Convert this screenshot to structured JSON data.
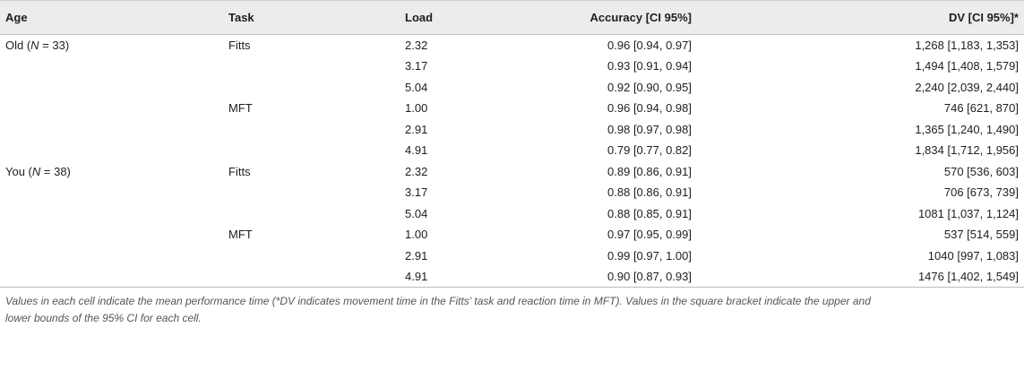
{
  "headers": {
    "age": "Age",
    "task": "Task",
    "load": "Load",
    "accuracy": "Accuracy [CI 95%]",
    "dv": "DV [CI 95%]*"
  },
  "rows": [
    {
      "age_prefix": "Old (",
      "age_n": "N",
      "age_suffix": " = 33)",
      "task": "Fitts",
      "load": "2.32",
      "accuracy": "0.96 [0.94, 0.97]",
      "dv": "1,268 [1,183, 1,353]"
    },
    {
      "age_prefix": "",
      "age_n": "",
      "age_suffix": "",
      "task": "",
      "load": "3.17",
      "accuracy": "0.93 [0.91, 0.94]",
      "dv": "1,494 [1,408, 1,579]"
    },
    {
      "age_prefix": "",
      "age_n": "",
      "age_suffix": "",
      "task": "",
      "load": "5.04",
      "accuracy": "0.92 [0.90, 0.95]",
      "dv": "2,240 [2,039, 2,440]"
    },
    {
      "age_prefix": "",
      "age_n": "",
      "age_suffix": "",
      "task": "MFT",
      "load": "1.00",
      "accuracy": "0.96 [0.94, 0.98]",
      "dv": "746 [621, 870]"
    },
    {
      "age_prefix": "",
      "age_n": "",
      "age_suffix": "",
      "task": "",
      "load": "2.91",
      "accuracy": "0.98 [0.97, 0.98]",
      "dv": "1,365 [1,240, 1,490]"
    },
    {
      "age_prefix": "",
      "age_n": "",
      "age_suffix": "",
      "task": "",
      "load": "4.91",
      "accuracy": "0.79 [0.77, 0.82]",
      "dv": "1,834 [1,712, 1,956]"
    },
    {
      "age_prefix": "You (",
      "age_n": "N",
      "age_suffix": " = 38)",
      "task": "Fitts",
      "load": "2.32",
      "accuracy": "0.89 [0.86, 0.91]",
      "dv": "570 [536, 603]"
    },
    {
      "age_prefix": "",
      "age_n": "",
      "age_suffix": "",
      "task": "",
      "load": "3.17",
      "accuracy": "0.88 [0.86, 0.91]",
      "dv": "706 [673, 739]"
    },
    {
      "age_prefix": "",
      "age_n": "",
      "age_suffix": "",
      "task": "",
      "load": "5.04",
      "accuracy": "0.88 [0.85, 0.91]",
      "dv": "1081 [1,037, 1,124]"
    },
    {
      "age_prefix": "",
      "age_n": "",
      "age_suffix": "",
      "task": "MFT",
      "load": "1.00",
      "accuracy": "0.97 [0.95, 0.99]",
      "dv": "537 [514, 559]"
    },
    {
      "age_prefix": "",
      "age_n": "",
      "age_suffix": "",
      "task": "",
      "load": "2.91",
      "accuracy": "0.99 [0.97, 1.00]",
      "dv": "1040 [997, 1,083]"
    },
    {
      "age_prefix": "",
      "age_n": "",
      "age_suffix": "",
      "task": "",
      "load": "4.91",
      "accuracy": "0.90 [0.87, 0.93]",
      "dv": "1476 [1,402, 1,549]"
    }
  ],
  "footnote": {
    "line1": "Values in each cell indicate the mean performance time (*DV indicates movement time in the Fitts' task and reaction time in MFT). Values in the square bracket indicate the upper and",
    "line2": "lower bounds of the 95% CI for each cell."
  }
}
